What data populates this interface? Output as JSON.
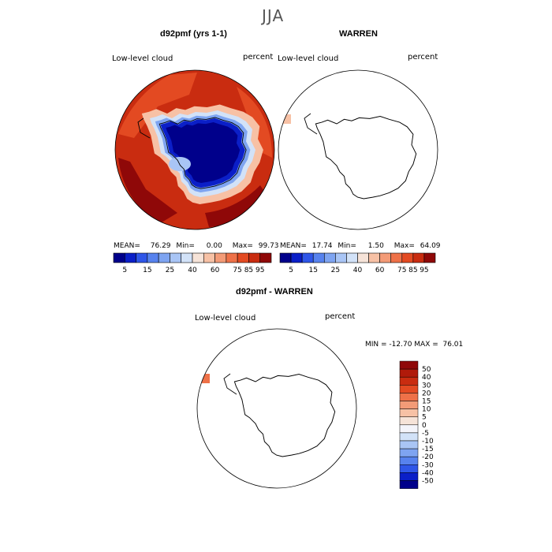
{
  "figure": {
    "season": "JJA",
    "color_scale": [
      "#00008b",
      "#0b1fc8",
      "#2f56e8",
      "#5782ee",
      "#7ea4f1",
      "#a9c5f5",
      "#d2e2f8",
      "#f6e3d8",
      "#f7c1a5",
      "#f39b77",
      "#ee7148",
      "#e34a22",
      "#c92c10",
      "#8f0808"
    ]
  },
  "panels": [
    {
      "title": "d92pmf (yrs 1-1)",
      "field_label": "Low-level cloud",
      "units_label": "percent",
      "stats": {
        "mean_label": "MEAN=",
        "mean": "76.29",
        "min_label": "Min=",
        "min": "0.00",
        "max_label": "Max=",
        "max": "99.73"
      },
      "colorbar_ticks": [
        "5",
        "15",
        "25",
        "40",
        "60",
        "75",
        "85",
        "95"
      ]
    },
    {
      "title": "WARREN",
      "field_label": "Low-level cloud",
      "units_label": "percent",
      "stats": {
        "mean_label": "MEAN=",
        "mean": "17.74",
        "min_label": "Min=",
        "min": "1.50",
        "max_label": "Max=",
        "max": "64.09"
      },
      "colorbar_ticks": [
        "5",
        "15",
        "25",
        "40",
        "60",
        "75",
        "85",
        "95"
      ]
    },
    {
      "title": "d92pmf - WARREN",
      "field_label": "Low-level cloud",
      "units_label": "percent",
      "minmax_text": "MIN = -12.70 MAX =  76.01",
      "colorbar_ticks": [
        "50",
        "40",
        "30",
        "20",
        "15",
        "10",
        "5",
        "0",
        "-5",
        "-10",
        "-15",
        "-20",
        "-30",
        "-40",
        "-50"
      ]
    }
  ],
  "chart_data": [
    {
      "type": "heatmap",
      "title": "d92pmf (yrs 1-1)",
      "subtitle": "Low-level cloud",
      "units": "percent",
      "projection": "south polar stereographic",
      "levels": [
        5,
        15,
        25,
        40,
        60,
        75,
        85,
        95
      ],
      "stats": {
        "mean": 76.29,
        "min": 0.0,
        "max": 99.73
      }
    },
    {
      "type": "heatmap",
      "title": "WARREN",
      "subtitle": "Low-level cloud",
      "units": "percent",
      "projection": "south polar stereographic",
      "levels": [
        5,
        15,
        25,
        40,
        60,
        75,
        85,
        95
      ],
      "stats": {
        "mean": 17.74,
        "min": 1.5,
        "max": 64.09
      }
    },
    {
      "type": "heatmap",
      "title": "d92pmf - WARREN",
      "subtitle": "Low-level cloud",
      "units": "percent",
      "projection": "south polar stereographic",
      "levels": [
        -50,
        -40,
        -30,
        -20,
        -15,
        -10,
        -5,
        0,
        5,
        10,
        15,
        20,
        30,
        40,
        50
      ],
      "stats": {
        "min": -12.7,
        "max": 76.01
      }
    }
  ]
}
